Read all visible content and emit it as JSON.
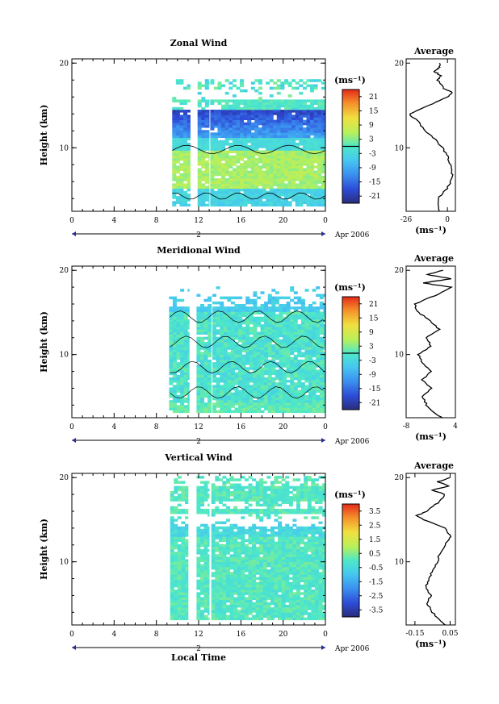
{
  "chart_data": [
    {
      "type": "heatmap",
      "title": "Zonal Wind",
      "ylabel": "Height (km)",
      "xlabel": "",
      "x_ticks": [
        "0",
        "4",
        "8",
        "12",
        "16",
        "20",
        "0"
      ],
      "y_ticks": [
        "20",
        "10"
      ],
      "xlim": [
        0,
        24
      ],
      "ylim": [
        2.5,
        20.5
      ],
      "date_day": "2",
      "date_label": "Apr 2006",
      "colorbar": {
        "unit": "(ms⁻¹)",
        "ticks": [
          "21",
          "15",
          "9",
          "3",
          "-3",
          "-9",
          "-15",
          "-21"
        ],
        "range": [
          -24,
          24
        ],
        "zero_line": true
      },
      "data_columns": [
        [
          9.5,
          11.2
        ],
        [
          11.9,
          13.0
        ],
        [
          13.1,
          24
        ]
      ],
      "data_top_km": 18,
      "profile_values": [
        [
          2.5,
          -5
        ],
        [
          4,
          -6
        ],
        [
          5,
          -1
        ],
        [
          6,
          2
        ],
        [
          7,
          3
        ],
        [
          8,
          2
        ],
        [
          9,
          0
        ],
        [
          10,
          -3
        ],
        [
          11,
          -8
        ],
        [
          12,
          -14
        ],
        [
          13,
          -18
        ],
        [
          14,
          -24
        ],
        [
          15,
          -12
        ],
        [
          16,
          0
        ],
        [
          16.5,
          3
        ],
        [
          17,
          -2
        ],
        [
          18,
          -6
        ],
        [
          18.5,
          -4
        ],
        [
          19,
          -8
        ],
        [
          19.5,
          -5
        ],
        [
          20,
          -5
        ]
      ],
      "profile": {
        "title": "Average",
        "xlim": [
          -26,
          5
        ],
        "x_ticks": [
          "-26",
          "0"
        ],
        "tick_values": [
          -26,
          0
        ],
        "y_ticks": [
          "20",
          "10"
        ],
        "xlabel": "(ms⁻¹)"
      }
    },
    {
      "type": "heatmap",
      "title": "Meridional Wind",
      "ylabel": "Height (km)",
      "xlabel": "",
      "x_ticks": [
        "0",
        "4",
        "8",
        "12",
        "16",
        "20",
        "0"
      ],
      "y_ticks": [
        "20",
        "10"
      ],
      "xlim": [
        0,
        24
      ],
      "ylim": [
        2.5,
        20.5
      ],
      "date_day": "2",
      "date_label": "Apr 2006",
      "colorbar": {
        "unit": "(ms⁻¹)",
        "ticks": [
          "21",
          "15",
          "9",
          "3",
          "-3",
          "-9",
          "-15",
          "-21"
        ],
        "range": [
          -24,
          24
        ],
        "zero_line": true
      },
      "data_columns": [
        [
          9.2,
          11.1
        ],
        [
          11.8,
          13.2
        ],
        [
          13.3,
          24
        ]
      ],
      "data_top_km": 18,
      "profile_values": [
        [
          2.5,
          1
        ],
        [
          3,
          -1
        ],
        [
          4,
          -3
        ],
        [
          5,
          -4
        ],
        [
          6,
          -2
        ],
        [
          7,
          -4
        ],
        [
          8,
          -2
        ],
        [
          9,
          -4
        ],
        [
          10,
          -5
        ],
        [
          11,
          -2
        ],
        [
          12,
          -3
        ],
        [
          13,
          0
        ],
        [
          14,
          -2
        ],
        [
          15,
          -5
        ],
        [
          16,
          -6
        ],
        [
          17,
          -1
        ],
        [
          18,
          3
        ],
        [
          18.5,
          -4
        ],
        [
          19,
          3
        ],
        [
          19.5,
          -3
        ],
        [
          20,
          1
        ]
      ],
      "profile": {
        "title": "Average",
        "xlim": [
          -8,
          4
        ],
        "x_ticks": [
          "-8",
          "4"
        ],
        "tick_values": [
          -8,
          4
        ],
        "y_ticks": [
          "20",
          "10"
        ],
        "xlabel": "(ms⁻¹)"
      }
    },
    {
      "type": "heatmap",
      "title": "Vertical Wind",
      "ylabel": "Height (km)",
      "xlabel": "Local Time",
      "x_ticks": [
        "0",
        "4",
        "8",
        "12",
        "16",
        "20",
        "0"
      ],
      "y_ticks": [
        "20",
        "10"
      ],
      "xlim": [
        0,
        24
      ],
      "ylim": [
        2.5,
        20.5
      ],
      "date_day": "2",
      "date_label": "Apr 2006",
      "colorbar": {
        "unit": "(ms⁻¹)",
        "ticks": [
          "3.5",
          "2.5",
          "1.5",
          "0.5",
          "-0.5",
          "-1.5",
          "-2.5",
          "-3.5"
        ],
        "range": [
          -4,
          4
        ],
        "zero_line": false
      },
      "data_columns": [
        [
          9.3,
          11.0
        ],
        [
          11.8,
          13.0
        ],
        [
          13.2,
          24
        ]
      ],
      "data_top_km": 20,
      "profile_values": [
        [
          2.5,
          0.02
        ],
        [
          3,
          -0.01
        ],
        [
          4,
          -0.05
        ],
        [
          5,
          -0.08
        ],
        [
          6,
          -0.06
        ],
        [
          7,
          -0.09
        ],
        [
          8,
          -0.07
        ],
        [
          9,
          -0.05
        ],
        [
          10,
          -0.02
        ],
        [
          11,
          -0.01
        ],
        [
          12,
          0.02
        ],
        [
          13,
          0.05
        ],
        [
          14,
          0.02
        ],
        [
          15,
          -0.1
        ],
        [
          15.5,
          -0.14
        ],
        [
          16,
          -0.08
        ],
        [
          17,
          -0.02
        ],
        [
          18,
          0.02
        ],
        [
          18.5,
          -0.05
        ],
        [
          19,
          0.04
        ],
        [
          19.5,
          -0.02
        ],
        [
          20,
          0.05
        ]
      ],
      "profile": {
        "title": "Average",
        "xlim": [
          -0.2,
          0.08
        ],
        "x_ticks": [
          "-0.15",
          "0.05"
        ],
        "tick_values": [
          -0.15,
          0.05
        ],
        "y_ticks": [
          "20",
          "10"
        ],
        "xlabel": "(ms⁻¹)"
      }
    }
  ]
}
